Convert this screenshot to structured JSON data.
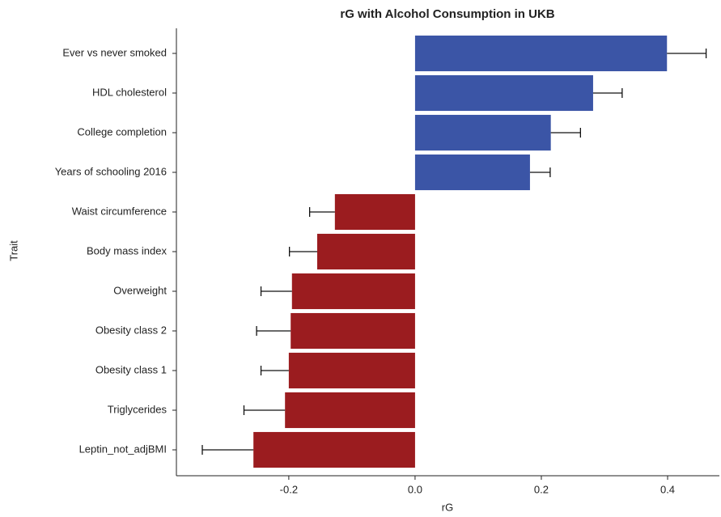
{
  "chart_data": {
    "type": "hbar_error",
    "title": "rG with Alcohol Consumption in UKB",
    "xlabel": "rG",
    "ylabel": "Trait",
    "categories": [
      "Ever vs never smoked",
      "HDL cholesterol",
      "College completion",
      "Years of schooling 2016",
      "Waist circumference",
      "Body mass index",
      "Overweight",
      "Obesity class 2",
      "Obesity class 1",
      "Triglycerides",
      "Leptin_not_adjBMI"
    ],
    "values": [
      0.399,
      0.282,
      0.215,
      0.182,
      -0.127,
      -0.155,
      -0.195,
      -0.197,
      -0.2,
      -0.206,
      -0.256
    ],
    "errors": [
      0.062,
      0.046,
      0.047,
      0.032,
      0.04,
      0.044,
      0.049,
      0.054,
      0.044,
      0.065,
      0.081
    ],
    "colors": [
      "#3b55a6",
      "#3b55a6",
      "#3b55a6",
      "#3b55a6",
      "#9b1c1f",
      "#9b1c1f",
      "#9b1c1f",
      "#9b1c1f",
      "#9b1c1f",
      "#9b1c1f",
      "#9b1c1f"
    ],
    "xlim": [
      -0.378,
      0.482
    ],
    "xticks": [
      -0.2,
      {
        "value": 0,
        "label": "0.0"
      },
      0.2,
      0.4
    ],
    "grid": false
  }
}
